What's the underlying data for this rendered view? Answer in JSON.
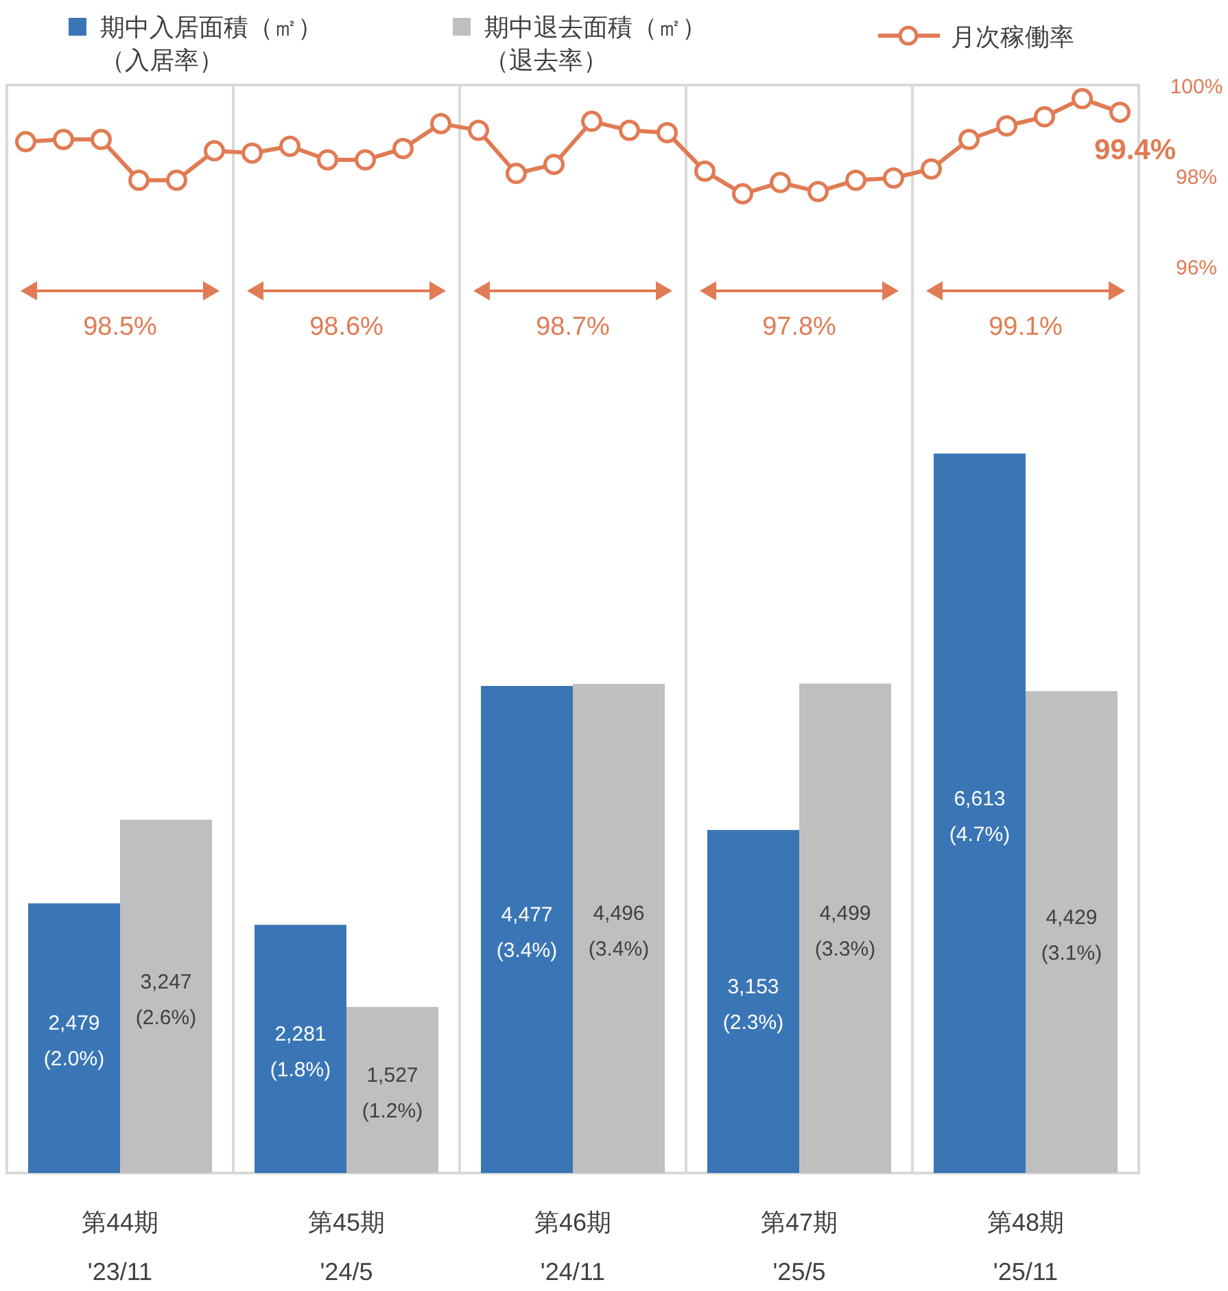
{
  "chart_data": [
    {
      "type": "bar",
      "categories": [
        "第44期\n'23/11",
        "第45期\n'24/5",
        "第46期\n'24/11",
        "第47期\n'25/5",
        "第48期\n'25/11"
      ],
      "series": [
        {
          "name": "期中入居面積（㎡）（入居率）",
          "color": "#3a76b5",
          "values": [
            2479,
            2281,
            4477,
            3153,
            6613
          ],
          "value_labels": [
            "2,479\n(2.0%)",
            "2,281\n(1.8%)",
            "4,477\n(3.4%)",
            "3,153\n(2.3%)",
            "6,613\n(4.7%)"
          ]
        },
        {
          "name": "期中退去面積（㎡）（退去率）",
          "color": "#bfbfbf",
          "values": [
            3247,
            1527,
            4496,
            4499,
            4429
          ],
          "value_labels": [
            "3,247\n(2.6%)",
            "1,527\n(1.2%)",
            "4,496\n(3.4%)",
            "4,499\n(3.3%)",
            "4,429\n(3.1%)"
          ]
        }
      ],
      "ylim": [
        0,
        10000
      ],
      "grid": "x",
      "legend": "top",
      "annotations": [
        "98.5%",
        "98.6%",
        "98.7%",
        "97.8%",
        "99.1%"
      ]
    },
    {
      "type": "line",
      "series": [
        {
          "name": "月次稼働率",
          "color": "#e07b53",
          "values": [
            98.75,
            98.8,
            98.8,
            97.9,
            97.9,
            98.55,
            98.5,
            98.65,
            98.35,
            98.35,
            98.6,
            99.15,
            99.0,
            98.05,
            98.25,
            99.2,
            99.0,
            98.95,
            98.1,
            97.6,
            97.85,
            97.65,
            97.9,
            97.95,
            98.15,
            98.8,
            99.1,
            99.3,
            99.7,
            99.4
          ],
          "value_labels": [
            null,
            null,
            null,
            null,
            null,
            null,
            null,
            null,
            null,
            null,
            null,
            null,
            null,
            null,
            null,
            null,
            null,
            null,
            null,
            null,
            null,
            null,
            null,
            null,
            null,
            null,
            null,
            null,
            null,
            "99.4%"
          ]
        }
      ],
      "categories": [
        null,
        null,
        null,
        null,
        null,
        null,
        null,
        null,
        null,
        null,
        null,
        null,
        null,
        null,
        null,
        null,
        null,
        null,
        null,
        null,
        null,
        null,
        null,
        null,
        null,
        null,
        null,
        null,
        null,
        null
      ],
      "ylim": [
        76,
        100
      ],
      "yticks": [
        {
          "value": 100,
          "label": "100%"
        },
        {
          "value": 98,
          "label": "98%"
        },
        {
          "value": 96,
          "label": "96%"
        }
      ],
      "tick_labels": "y",
      "legend": "top",
      "marker": "circle"
    }
  ]
}
